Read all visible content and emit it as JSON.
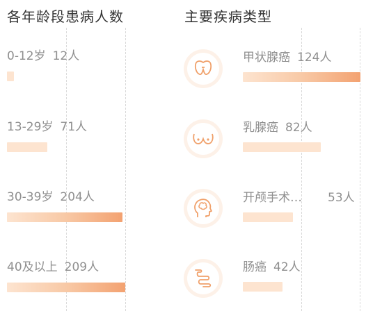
{
  "chart_data": [
    {
      "type": "bar",
      "title": "各年龄段患病人数",
      "categories": [
        "0-12岁",
        "13-29岁",
        "30-39岁",
        "40及以上"
      ],
      "count_labels": [
        "12人",
        "71人",
        "204人",
        "209人"
      ],
      "values": [
        12,
        71,
        204,
        209
      ],
      "orientation": "horizontal",
      "grid": true,
      "colors": [
        "#fde4d0",
        "#f3a271"
      ]
    },
    {
      "type": "bar",
      "title": "主要疾病类型",
      "categories": [
        "甲状腺癌",
        "乳腺癌",
        "开颅手术…",
        "肠癌"
      ],
      "count_labels": [
        "124人",
        "82人",
        "53人",
        "42人"
      ],
      "values": [
        124,
        82,
        53,
        42
      ],
      "icons": [
        "thyroid-icon",
        "breast-icon",
        "brain-head-icon",
        "intestine-icon"
      ],
      "orientation": "horizontal",
      "grid": true,
      "colors": [
        "#fde4d0",
        "#f3a271"
      ]
    }
  ],
  "accent_color": "#f3a271",
  "icon_color": "#f0a06a"
}
